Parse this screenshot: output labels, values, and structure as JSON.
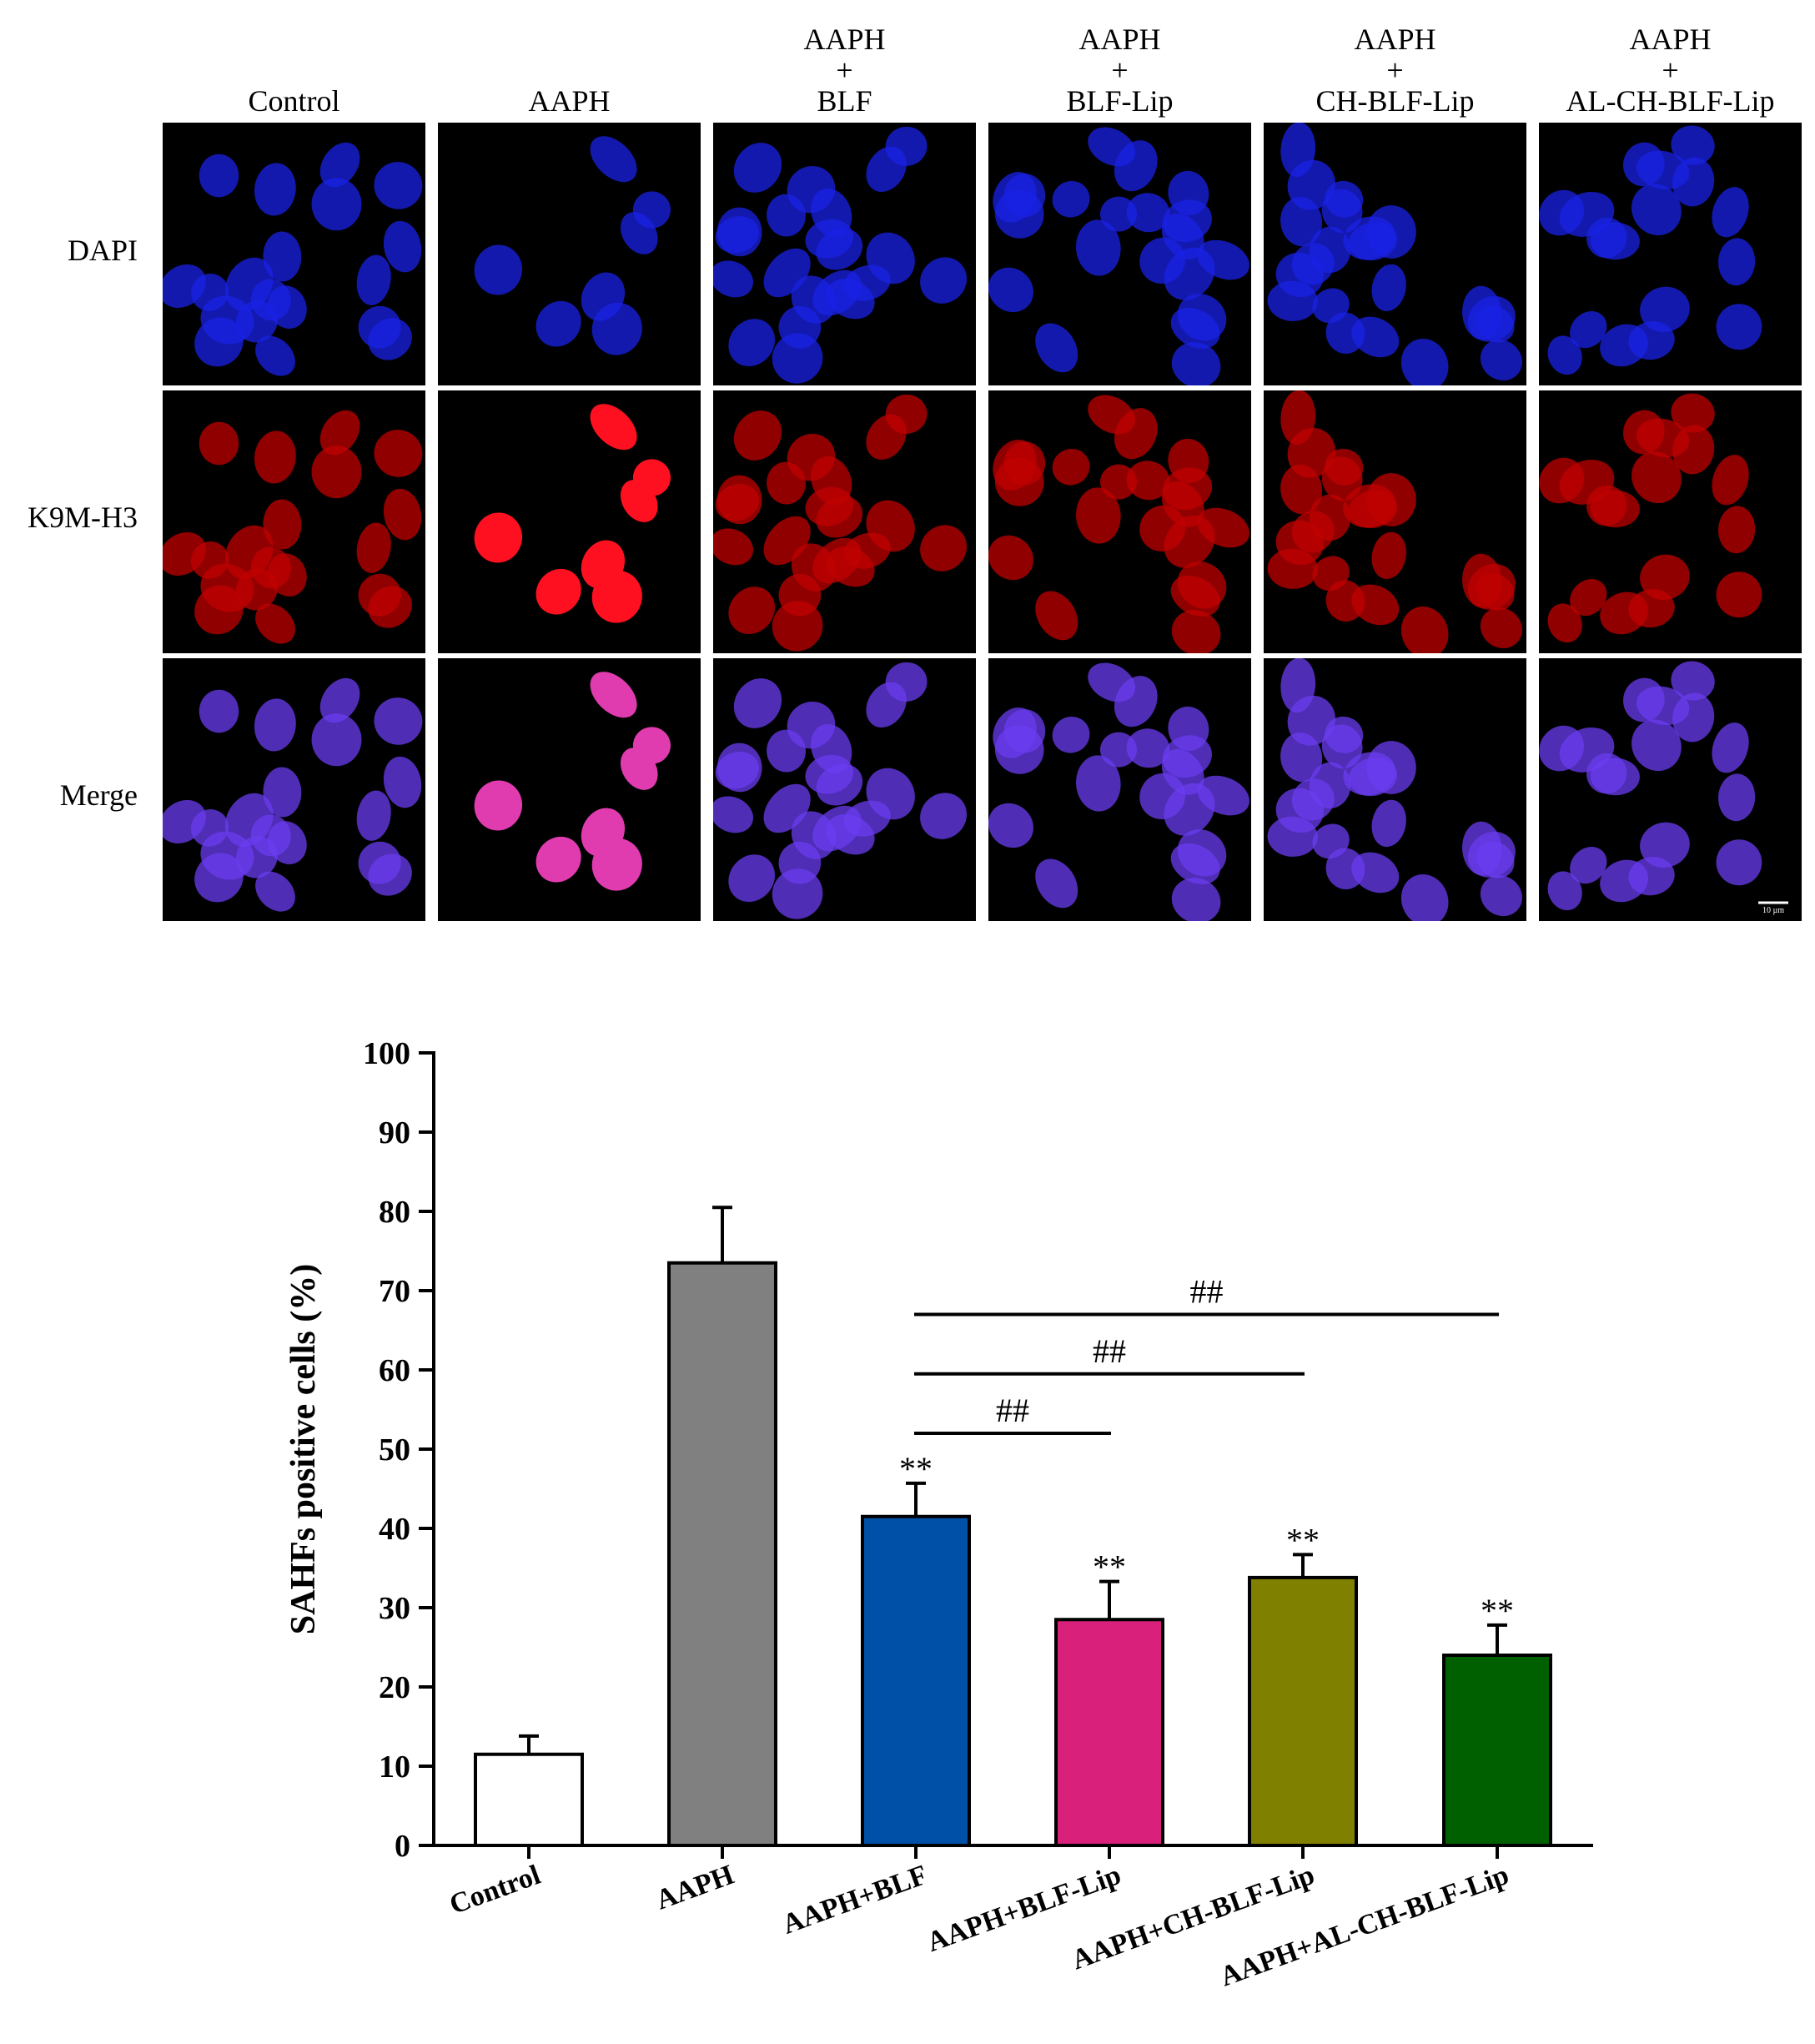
{
  "micrographs": {
    "columns": [
      {
        "lines": [
          "Control"
        ]
      },
      {
        "lines": [
          "AAPH"
        ]
      },
      {
        "lines": [
          "AAPH",
          "+",
          "BLF"
        ]
      },
      {
        "lines": [
          "AAPH",
          "+",
          "BLF-Lip"
        ]
      },
      {
        "lines": [
          "AAPH",
          "+",
          "CH-BLF-Lip"
        ]
      },
      {
        "lines": [
          "AAPH",
          "+",
          "AL-CH-BLF-Lip"
        ]
      }
    ],
    "rows": [
      {
        "label": "DAPI",
        "stain": "dapi"
      },
      {
        "label": "K9M-H3",
        "stain": "k9m"
      },
      {
        "label": "Merge",
        "stain": "merge"
      }
    ],
    "scale_bar_label": "10 µm",
    "colors": {
      "dapi": "#1a22e6",
      "k9m": "#c00000",
      "merge": "#6a3cf0",
      "background": "#000000"
    }
  },
  "chart_data": {
    "type": "bar",
    "categories": [
      "Control",
      "AAPH",
      "AAPH+BLF",
      "AAPH+BLF-Lip",
      "AAPH+CH-BLF-Lip",
      "AAPH+AL-CH-BLF-Lip"
    ],
    "values": [
      11.5,
      73.5,
      41.5,
      28.5,
      33.8,
      24.0
    ],
    "errors": [
      2.3,
      7.0,
      4.2,
      4.8,
      2.9,
      3.8
    ],
    "colors": [
      "#ffffff",
      "#808080",
      "#0050a8",
      "#d9207a",
      "#808000",
      "#006000"
    ],
    "bar_annotations": [
      "",
      "",
      "**",
      "**",
      "**",
      "**"
    ],
    "ylabel": "SAHFs positive cells (%)",
    "xlabel": "",
    "ylim": [
      0,
      100
    ],
    "yticks": [
      0,
      10,
      20,
      30,
      40,
      50,
      60,
      70,
      80,
      90,
      100
    ],
    "grid": false,
    "significance_brackets": [
      {
        "from": "AAPH+BLF",
        "to": "AAPH+BLF-Lip",
        "label": "##",
        "y": 52
      },
      {
        "from": "AAPH+BLF",
        "to": "AAPH+CH-BLF-Lip",
        "label": "##",
        "y": 59.5
      },
      {
        "from": "AAPH+BLF",
        "to": "AAPH+AL-CH-BLF-Lip",
        "label": "##",
        "y": 67
      }
    ]
  }
}
